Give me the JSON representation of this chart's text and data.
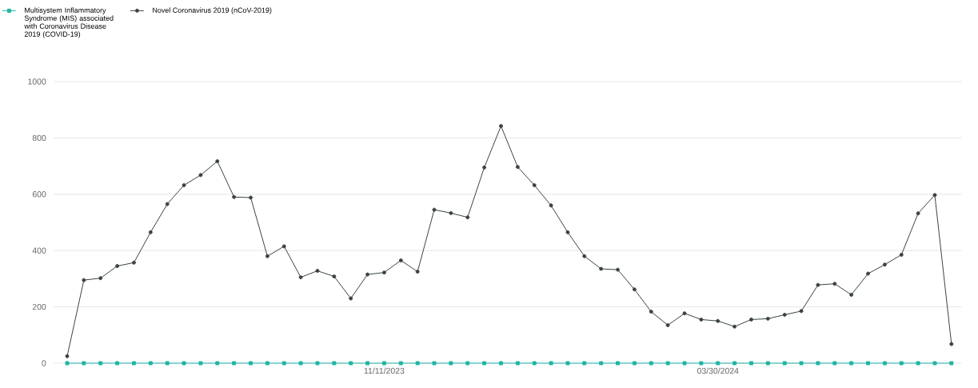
{
  "chart_data": {
    "type": "line",
    "categories": [
      null,
      null,
      null,
      null,
      null,
      null,
      null,
      null,
      null,
      null,
      null,
      null,
      null,
      null,
      null,
      null,
      null,
      null,
      null,
      "11/11/2023",
      null,
      null,
      null,
      null,
      null,
      null,
      null,
      null,
      null,
      null,
      null,
      null,
      null,
      null,
      null,
      null,
      null,
      null,
      null,
      "03/30/2024",
      null,
      null,
      null,
      null,
      null,
      null,
      null,
      null,
      null,
      null,
      null,
      null,
      null,
      null
    ],
    "series": [
      {
        "name": "Multisystem Inflammatory Syndrome (MIS) associated with Coronavirus Disease 2019 (COVID-19)",
        "color": "#1fb5a3",
        "marker": "square",
        "values": [
          0,
          0,
          0,
          0,
          0,
          0,
          0,
          0,
          0,
          0,
          0,
          0,
          0,
          0,
          0,
          0,
          0,
          0,
          0,
          0,
          0,
          0,
          0,
          0,
          0,
          0,
          0,
          0,
          0,
          0,
          0,
          0,
          0,
          0,
          0,
          0,
          0,
          0,
          0,
          0,
          0,
          0,
          0,
          0,
          0,
          0,
          0,
          0,
          0,
          0,
          0,
          0,
          0,
          0
        ]
      },
      {
        "name": "Novel Coronavirus 2019 (nCoV-2019)",
        "color": "#3a4242",
        "marker": "circle",
        "values": [
          25,
          295,
          302,
          345,
          357,
          465,
          565,
          632,
          668,
          717,
          590,
          588,
          380,
          415,
          305,
          328,
          308,
          230,
          315,
          322,
          365,
          325,
          545,
          533,
          518,
          695,
          842,
          697,
          632,
          560,
          465,
          380,
          335,
          332,
          262,
          183,
          135,
          177,
          155,
          150,
          130,
          155,
          158,
          172,
          185,
          278,
          282,
          243,
          318,
          350,
          385,
          532,
          597,
          68
        ]
      }
    ],
    "ylim": [
      0,
      1000
    ],
    "yticks": [
      0,
      200,
      400,
      600,
      800,
      1000
    ],
    "grid": "y",
    "legend": "top left",
    "line_style": "solid"
  }
}
